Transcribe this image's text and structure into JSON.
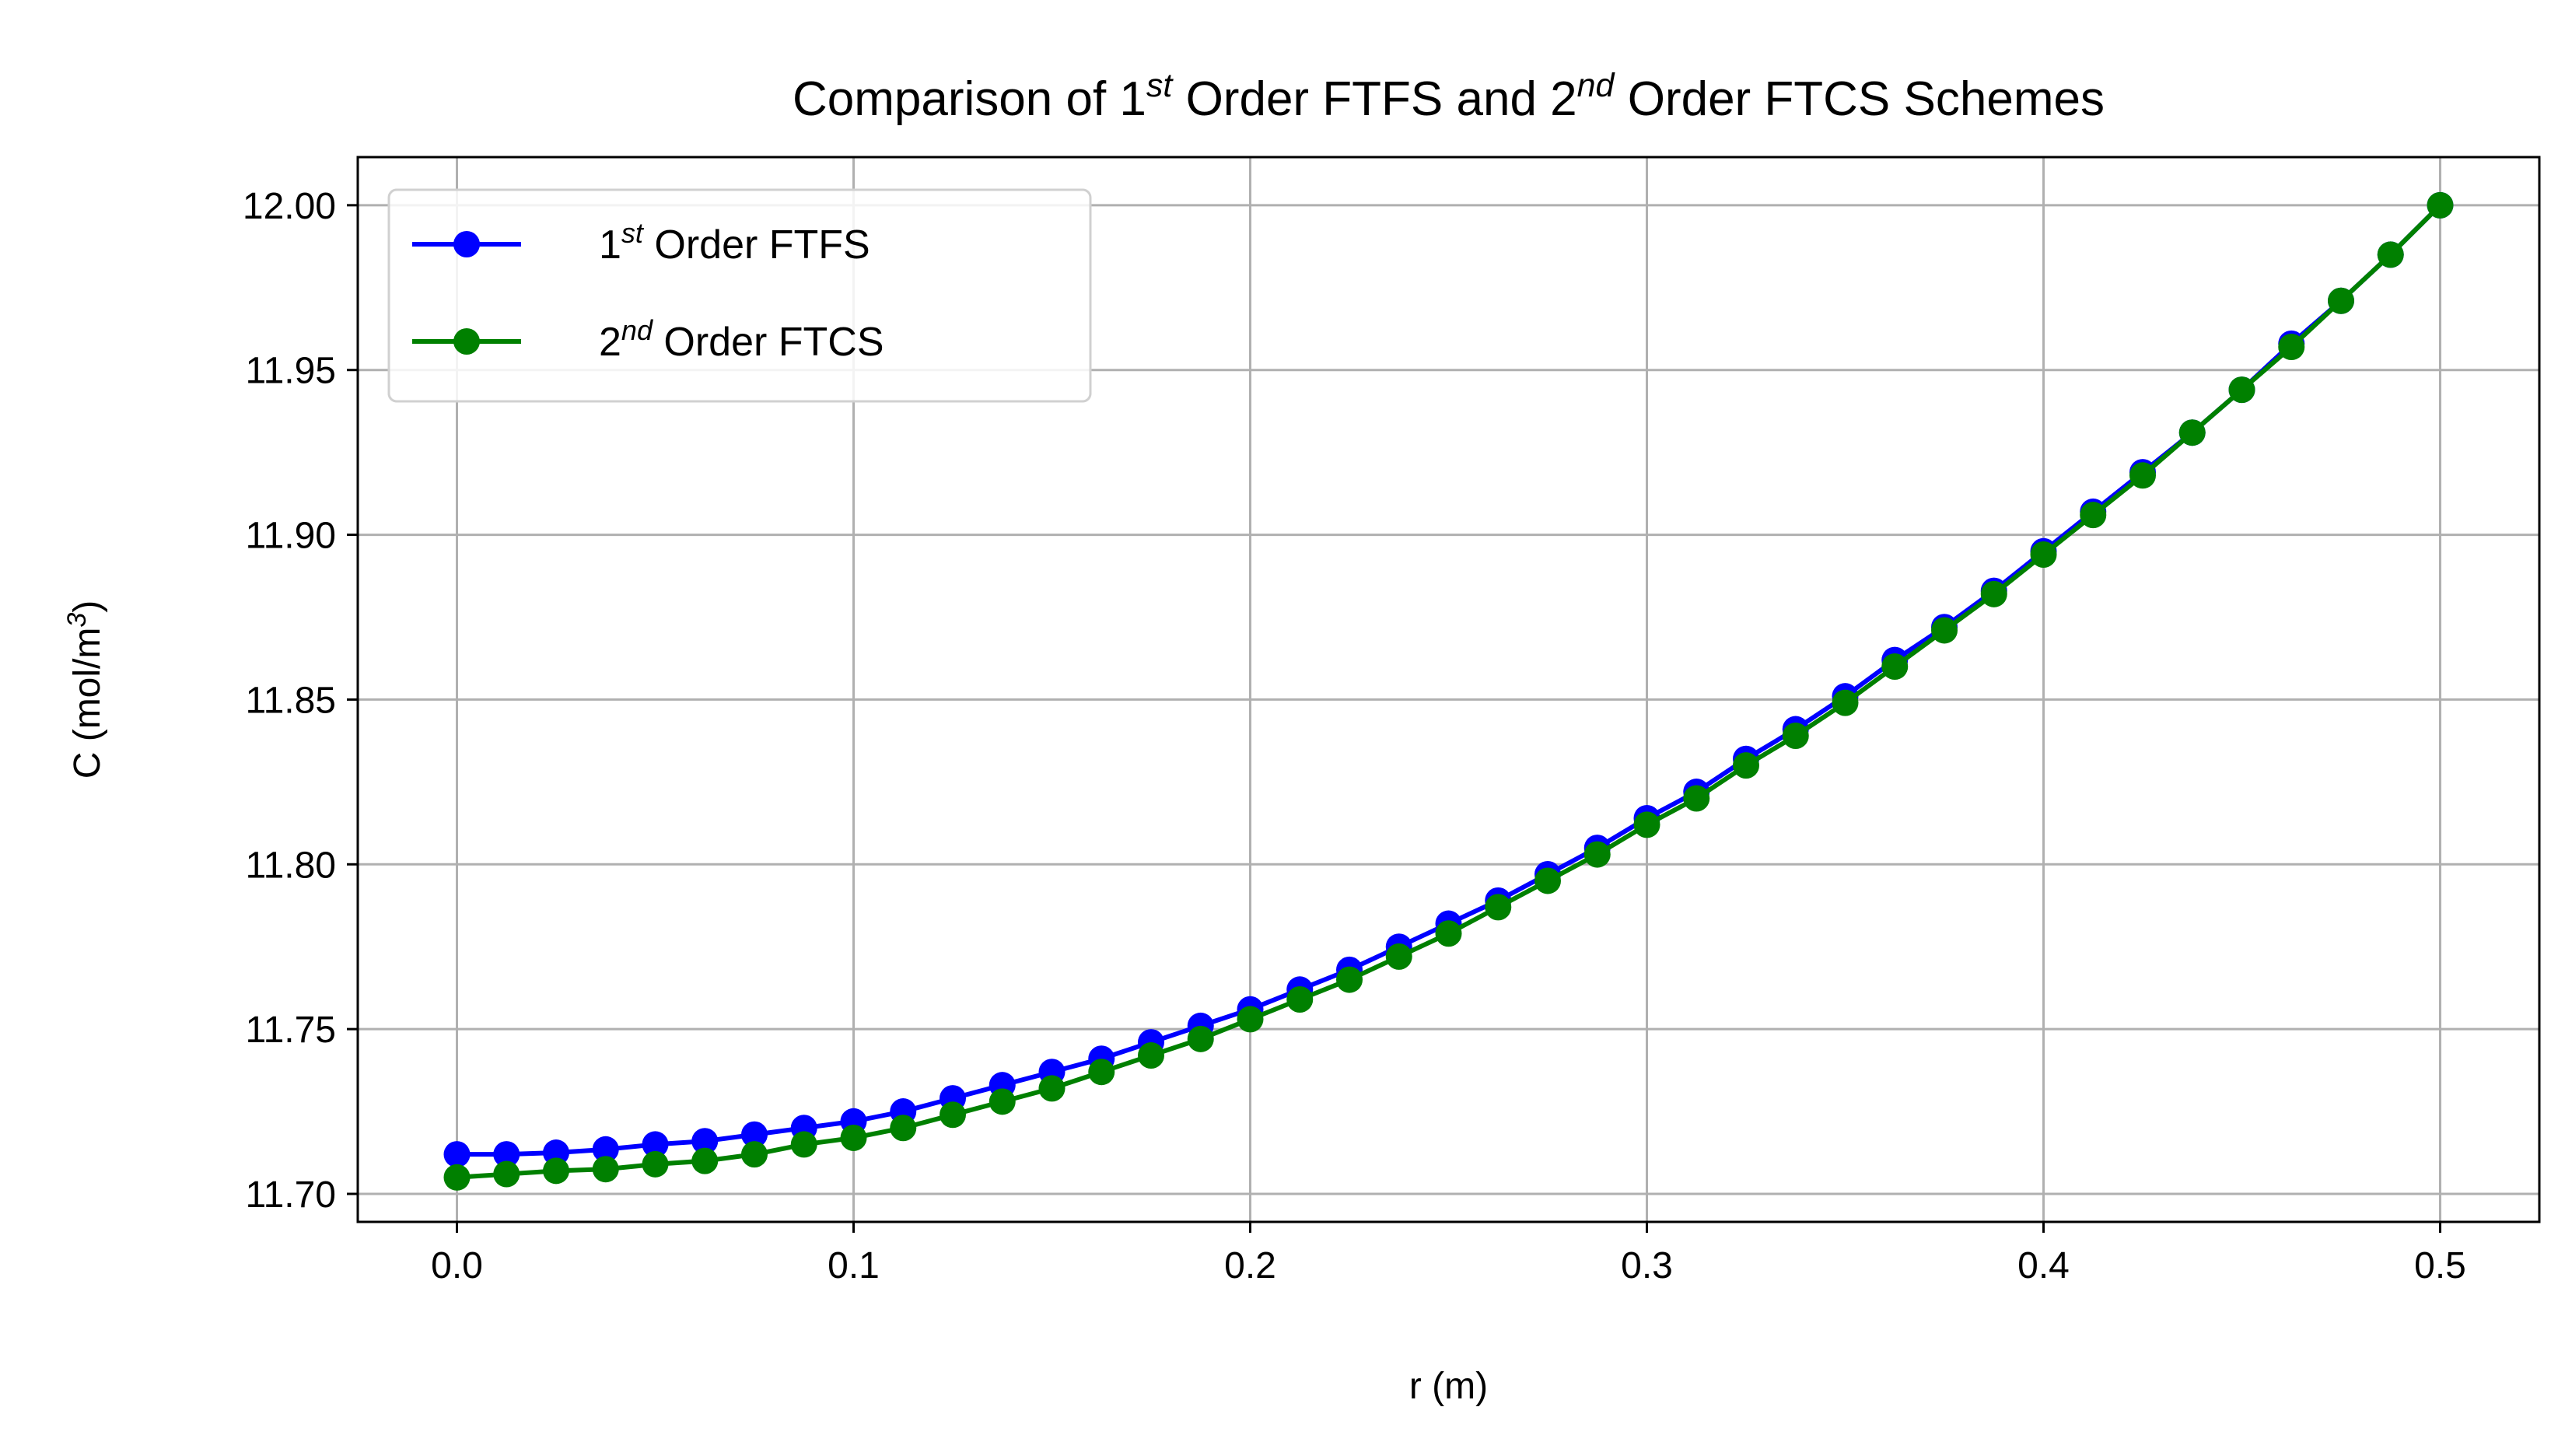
{
  "chart_data": {
    "type": "line",
    "title": {
      "parts": [
        {
          "text": "Comparison of 1",
          "style": "normal"
        },
        {
          "text": "st",
          "style": "sup"
        },
        {
          "text": " Order FTFS and 2",
          "style": "normal"
        },
        {
          "text": "nd",
          "style": "sup"
        },
        {
          "text": " Order FTCS Schemes",
          "style": "normal"
        }
      ]
    },
    "xlabel": "r (m)",
    "ylabel": {
      "parts": [
        {
          "text": "C (mol/m",
          "style": "normal"
        },
        {
          "text": "3",
          "style": "sup"
        },
        {
          "text": ")",
          "style": "normal"
        }
      ]
    },
    "xlim": [
      -0.025,
      0.525
    ],
    "ylim": [
      11.6915,
      12.0146
    ],
    "xticks": [
      0.0,
      0.1,
      0.2,
      0.3,
      0.4,
      0.5
    ],
    "xtick_labels": [
      "0.0",
      "0.1",
      "0.2",
      "0.3",
      "0.4",
      "0.5"
    ],
    "yticks": [
      11.7,
      11.75,
      11.8,
      11.85,
      11.9,
      11.95,
      12.0
    ],
    "ytick_labels": [
      "11.70",
      "11.75",
      "11.80",
      "11.85",
      "11.90",
      "11.95",
      "12.00"
    ],
    "grid": true,
    "legend_position": "top-left",
    "x": [
      0.0,
      0.0125,
      0.025,
      0.0375,
      0.05,
      0.0625,
      0.075,
      0.0875,
      0.1,
      0.1125,
      0.125,
      0.1375,
      0.15,
      0.1625,
      0.175,
      0.1875,
      0.2,
      0.2125,
      0.225,
      0.2375,
      0.25,
      0.2625,
      0.275,
      0.2875,
      0.3,
      0.3125,
      0.325,
      0.3375,
      0.35,
      0.3625,
      0.375,
      0.3875,
      0.4,
      0.4125,
      0.425,
      0.4375,
      0.45,
      0.4625,
      0.475,
      0.4875,
      0.5
    ],
    "series": [
      {
        "name_parts": [
          {
            "text": "1",
            "style": "normal"
          },
          {
            "text": "st",
            "style": "sup"
          },
          {
            "text": " Order FTFS",
            "style": "normal"
          }
        ],
        "color": "#0000ff",
        "marker": "circle",
        "values": [
          11.712,
          11.712,
          11.7125,
          11.7135,
          11.715,
          11.716,
          11.718,
          11.72,
          11.722,
          11.725,
          11.729,
          11.733,
          11.737,
          11.741,
          11.746,
          11.751,
          11.756,
          11.762,
          11.768,
          11.775,
          11.782,
          11.789,
          11.797,
          11.805,
          11.814,
          11.822,
          11.832,
          11.841,
          11.851,
          11.862,
          11.872,
          11.883,
          11.895,
          11.907,
          11.919,
          11.931,
          11.944,
          11.958,
          11.971,
          11.985,
          12.0
        ]
      },
      {
        "name_parts": [
          {
            "text": "2",
            "style": "normal"
          },
          {
            "text": "nd",
            "style": "sup"
          },
          {
            "text": " Order FTCS",
            "style": "normal"
          }
        ],
        "color": "#008000",
        "marker": "circle",
        "values": [
          11.705,
          11.706,
          11.707,
          11.7075,
          11.709,
          11.71,
          11.712,
          11.715,
          11.717,
          11.72,
          11.724,
          11.728,
          11.732,
          11.737,
          11.742,
          11.747,
          11.753,
          11.759,
          11.765,
          11.772,
          11.779,
          11.787,
          11.795,
          11.803,
          11.812,
          11.82,
          11.83,
          11.839,
          11.849,
          11.86,
          11.871,
          11.882,
          11.894,
          11.906,
          11.918,
          11.931,
          11.944,
          11.957,
          11.971,
          11.985,
          12.0
        ]
      }
    ]
  }
}
